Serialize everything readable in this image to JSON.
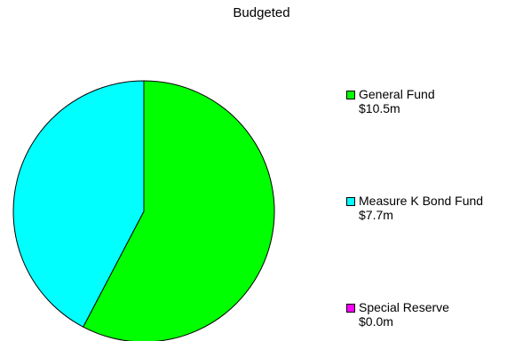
{
  "chart_data": {
    "type": "pie",
    "title": "Budgeted",
    "slices": [
      {
        "label": "General Fund",
        "value": 10.5,
        "display": "$10.5m",
        "color": "#00ff00"
      },
      {
        "label": "Measure K Bond Fund",
        "value": 7.7,
        "display": "$7.7m",
        "color": "#00ffff"
      },
      {
        "label": "Special Reserve",
        "value": 0.0,
        "display": "$0.0m",
        "color": "#ff00ff"
      }
    ],
    "legend_position": "right"
  }
}
